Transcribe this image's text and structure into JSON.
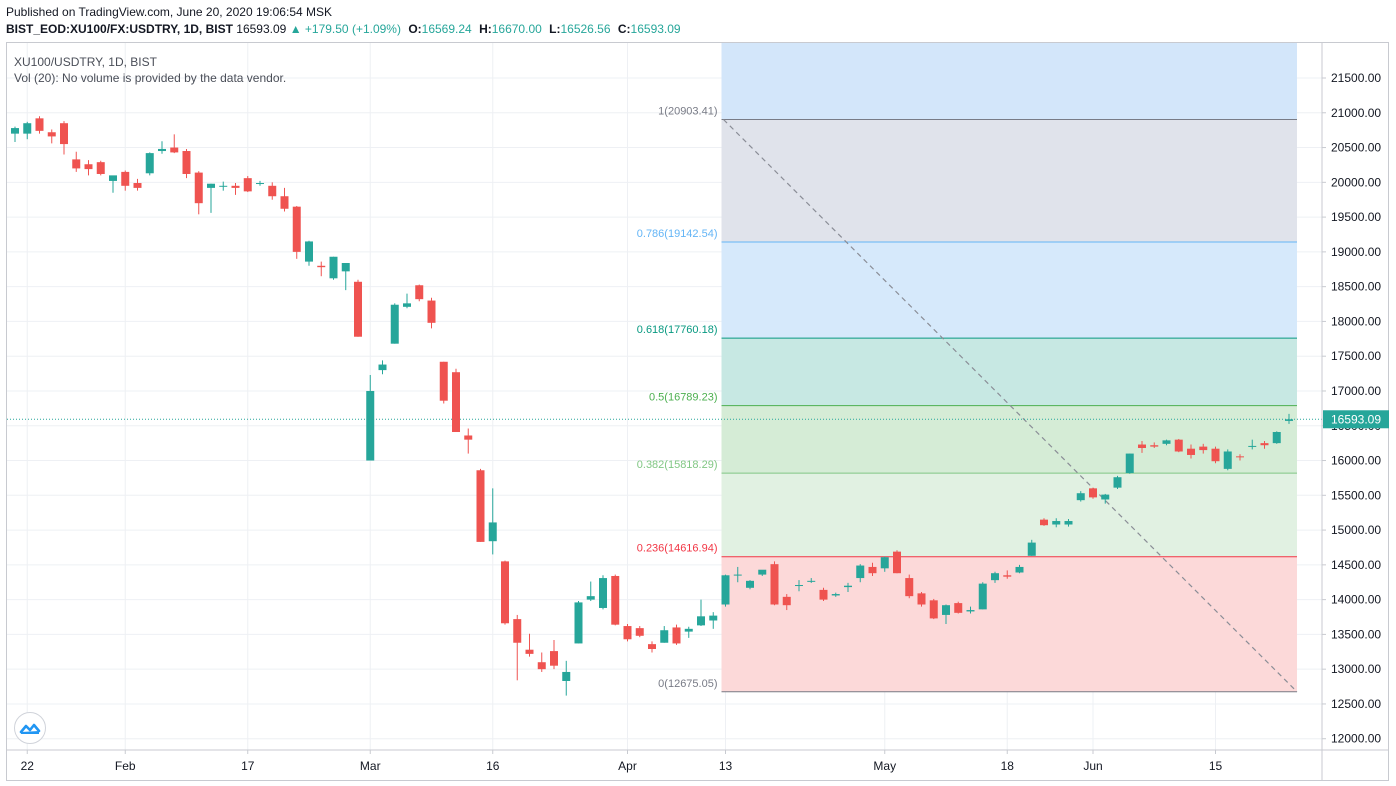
{
  "header": {
    "published": "Published on TradingView.com, June 20, 2020 19:06:54 MSK",
    "symbol": "BIST_EOD:XU100/FX:USDTRY, 1D, BIST",
    "last": "16593.09",
    "change": "▲ +179.50 (+1.09%)",
    "o_label": "O:",
    "o_value": "16569.24",
    "h_label": "H:",
    "h_value": "16670.00",
    "l_label": "L:",
    "l_value": "16526.56",
    "c_label": "C:",
    "c_value": "16593.09"
  },
  "legend": {
    "title": "XU100/USDTRY, 1D, BIST",
    "volume": "Vol (20): No volume is provided by the data vendor."
  },
  "colors": {
    "up": "#26a69a",
    "down": "#ef5350",
    "grid": "#eef0f4",
    "axis_text": "#131722",
    "price_line": "#26a69a"
  },
  "chart_data": {
    "type": "candlestick",
    "y_axis": {
      "ylim": [
        11900,
        22000
      ],
      "ticks": [
        12000,
        12500,
        13000,
        13500,
        14000,
        14500,
        15000,
        15500,
        16000,
        16500,
        17000,
        17500,
        18000,
        18500,
        19000,
        19500,
        20000,
        20500,
        21000,
        21500
      ],
      "tick_labels": [
        "12000.00",
        "12500.00",
        "13000.00",
        "13500.00",
        "14000.00",
        "14500.00",
        "15000.00",
        "15500.00",
        "16000.00",
        "16500.00",
        "17000.00",
        "17500.00",
        "18000.00",
        "18500.00",
        "19000.00",
        "19500.00",
        "20000.00",
        "20500.00",
        "21000.00",
        "21500.00"
      ]
    },
    "x_axis": {
      "ticks": [
        {
          "label": "22",
          "index": 1
        },
        {
          "label": "Feb",
          "index": 9
        },
        {
          "label": "17",
          "index": 19
        },
        {
          "label": "Mar",
          "index": 29
        },
        {
          "label": "16",
          "index": 39
        },
        {
          "label": "Apr",
          "index": 50
        },
        {
          "label": "13",
          "index": 58
        },
        {
          "label": "May",
          "index": 71
        },
        {
          "label": "18",
          "index": 81
        },
        {
          "label": "Jun",
          "index": 88
        },
        {
          "label": "15",
          "index": 98
        }
      ]
    },
    "last_price": 16593.09,
    "last_price_label": "16593.09",
    "candles": [
      {
        "o": 20700,
        "h": 20800,
        "l": 20580,
        "c": 20780
      },
      {
        "o": 20700,
        "h": 20870,
        "l": 20620,
        "c": 20850
      },
      {
        "o": 20920,
        "h": 20950,
        "l": 20700,
        "c": 20740
      },
      {
        "o": 20720,
        "h": 20760,
        "l": 20560,
        "c": 20660
      },
      {
        "o": 20850,
        "h": 20880,
        "l": 20400,
        "c": 20550
      },
      {
        "o": 20330,
        "h": 20440,
        "l": 20150,
        "c": 20200
      },
      {
        "o": 20260,
        "h": 20320,
        "l": 20100,
        "c": 20190
      },
      {
        "o": 20290,
        "h": 20310,
        "l": 20100,
        "c": 20120
      },
      {
        "o": 20020,
        "h": 20060,
        "l": 19850,
        "c": 20100
      },
      {
        "o": 20150,
        "h": 20170,
        "l": 19880,
        "c": 19950
      },
      {
        "o": 19990,
        "h": 20050,
        "l": 19880,
        "c": 19920
      },
      {
        "o": 20130,
        "h": 20430,
        "l": 20100,
        "c": 20420
      },
      {
        "o": 20450,
        "h": 20590,
        "l": 20410,
        "c": 20480
      },
      {
        "o": 20500,
        "h": 20690,
        "l": 20420,
        "c": 20430
      },
      {
        "o": 20450,
        "h": 20480,
        "l": 20060,
        "c": 20120
      },
      {
        "o": 20140,
        "h": 20160,
        "l": 19540,
        "c": 19700
      },
      {
        "o": 19920,
        "h": 19980,
        "l": 19560,
        "c": 19980
      },
      {
        "o": 19950,
        "h": 20010,
        "l": 19880,
        "c": 19950
      },
      {
        "o": 19950,
        "h": 19990,
        "l": 19820,
        "c": 19920
      },
      {
        "o": 20060,
        "h": 20090,
        "l": 19860,
        "c": 19870
      },
      {
        "o": 19980,
        "h": 20020,
        "l": 19950,
        "c": 19990
      },
      {
        "o": 19950,
        "h": 20000,
        "l": 19750,
        "c": 19800
      },
      {
        "o": 19800,
        "h": 19920,
        "l": 19580,
        "c": 19620
      },
      {
        "o": 19650,
        "h": 19660,
        "l": 18900,
        "c": 19000
      },
      {
        "o": 18860,
        "h": 19160,
        "l": 18800,
        "c": 19150
      },
      {
        "o": 18800,
        "h": 18860,
        "l": 18650,
        "c": 18780
      },
      {
        "o": 18620,
        "h": 18930,
        "l": 18600,
        "c": 18930
      },
      {
        "o": 18720,
        "h": 18800,
        "l": 18450,
        "c": 18840
      },
      {
        "o": 18570,
        "h": 18600,
        "l": 17780,
        "c": 17780
      },
      {
        "o": 16000,
        "h": 17230,
        "l": 16000,
        "c": 17000
      },
      {
        "o": 17300,
        "h": 17440,
        "l": 17240,
        "c": 17380
      },
      {
        "o": 17680,
        "h": 18260,
        "l": 17680,
        "c": 18240
      },
      {
        "o": 18210,
        "h": 18400,
        "l": 18190,
        "c": 18260
      },
      {
        "o": 18520,
        "h": 18530,
        "l": 18290,
        "c": 18320
      },
      {
        "o": 18300,
        "h": 18340,
        "l": 17900,
        "c": 17980
      },
      {
        "o": 17420,
        "h": 17420,
        "l": 16820,
        "c": 16860
      },
      {
        "o": 17270,
        "h": 17320,
        "l": 16410,
        "c": 16410
      },
      {
        "o": 16360,
        "h": 16460,
        "l": 16100,
        "c": 16300
      },
      {
        "o": 15860,
        "h": 15880,
        "l": 14830,
        "c": 14830
      },
      {
        "o": 14840,
        "h": 15600,
        "l": 14650,
        "c": 15110
      },
      {
        "o": 14550,
        "h": 14560,
        "l": 13640,
        "c": 13660
      },
      {
        "o": 13720,
        "h": 13780,
        "l": 12840,
        "c": 13380
      },
      {
        "o": 13280,
        "h": 13510,
        "l": 13180,
        "c": 13220
      },
      {
        "o": 13100,
        "h": 13240,
        "l": 12960,
        "c": 13000
      },
      {
        "o": 13260,
        "h": 13420,
        "l": 13000,
        "c": 13050
      },
      {
        "o": 12830,
        "h": 13120,
        "l": 12620,
        "c": 12960
      },
      {
        "o": 13370,
        "h": 13980,
        "l": 13370,
        "c": 13960
      },
      {
        "o": 14000,
        "h": 14260,
        "l": 13980,
        "c": 14050
      },
      {
        "o": 13880,
        "h": 14350,
        "l": 13860,
        "c": 14310
      },
      {
        "o": 14340,
        "h": 14360,
        "l": 13630,
        "c": 13640
      },
      {
        "o": 13620,
        "h": 13650,
        "l": 13400,
        "c": 13430
      },
      {
        "o": 13590,
        "h": 13620,
        "l": 13460,
        "c": 13480
      },
      {
        "o": 13360,
        "h": 13400,
        "l": 13240,
        "c": 13290
      },
      {
        "o": 13380,
        "h": 13620,
        "l": 13380,
        "c": 13560
      },
      {
        "o": 13600,
        "h": 13640,
        "l": 13350,
        "c": 13370
      },
      {
        "o": 13540,
        "h": 13610,
        "l": 13450,
        "c": 13580
      },
      {
        "o": 13630,
        "h": 14000,
        "l": 13620,
        "c": 13760
      },
      {
        "o": 13700,
        "h": 13820,
        "l": 13580,
        "c": 13770
      },
      {
        "o": 13930,
        "h": 14360,
        "l": 13900,
        "c": 14350
      },
      {
        "o": 14350,
        "h": 14470,
        "l": 14250,
        "c": 14360
      },
      {
        "o": 14170,
        "h": 14280,
        "l": 14150,
        "c": 14270
      },
      {
        "o": 14360,
        "h": 14420,
        "l": 14340,
        "c": 14430
      },
      {
        "o": 14510,
        "h": 14550,
        "l": 13920,
        "c": 13930
      },
      {
        "o": 14040,
        "h": 14080,
        "l": 13850,
        "c": 13920
      },
      {
        "o": 14200,
        "h": 14280,
        "l": 14120,
        "c": 14210
      },
      {
        "o": 14270,
        "h": 14310,
        "l": 14240,
        "c": 14270
      },
      {
        "o": 14140,
        "h": 14170,
        "l": 13980,
        "c": 14000
      },
      {
        "o": 14060,
        "h": 14100,
        "l": 14040,
        "c": 14080
      },
      {
        "o": 14180,
        "h": 14240,
        "l": 14110,
        "c": 14200
      },
      {
        "o": 14310,
        "h": 14510,
        "l": 14250,
        "c": 14490
      },
      {
        "o": 14470,
        "h": 14530,
        "l": 14340,
        "c": 14380
      },
      {
        "o": 14450,
        "h": 14620,
        "l": 14400,
        "c": 14610
      },
      {
        "o": 14690,
        "h": 14710,
        "l": 14380,
        "c": 14380
      },
      {
        "o": 14310,
        "h": 14360,
        "l": 14020,
        "c": 14050
      },
      {
        "o": 14090,
        "h": 14110,
        "l": 13900,
        "c": 13930
      },
      {
        "o": 13990,
        "h": 14010,
        "l": 13720,
        "c": 13730
      },
      {
        "o": 13780,
        "h": 13930,
        "l": 13650,
        "c": 13920
      },
      {
        "o": 13950,
        "h": 13970,
        "l": 13800,
        "c": 13810
      },
      {
        "o": 13830,
        "h": 13900,
        "l": 13800,
        "c": 13850
      },
      {
        "o": 13860,
        "h": 14250,
        "l": 13860,
        "c": 14230
      },
      {
        "o": 14280,
        "h": 14400,
        "l": 14240,
        "c": 14380
      },
      {
        "o": 14350,
        "h": 14420,
        "l": 14300,
        "c": 14330
      },
      {
        "o": 14390,
        "h": 14500,
        "l": 14380,
        "c": 14470
      },
      {
        "o": 14630,
        "h": 14860,
        "l": 14630,
        "c": 14820
      },
      {
        "o": 15150,
        "h": 15170,
        "l": 15060,
        "c": 15070
      },
      {
        "o": 15080,
        "h": 15170,
        "l": 15040,
        "c": 15130
      },
      {
        "o": 15080,
        "h": 15160,
        "l": 15050,
        "c": 15130
      },
      {
        "o": 15430,
        "h": 15560,
        "l": 15410,
        "c": 15530
      },
      {
        "o": 15600,
        "h": 15610,
        "l": 15450,
        "c": 15470
      },
      {
        "o": 15440,
        "h": 15520,
        "l": 15380,
        "c": 15510
      },
      {
        "o": 15610,
        "h": 15780,
        "l": 15590,
        "c": 15760
      },
      {
        "o": 15820,
        "h": 16100,
        "l": 15810,
        "c": 16100
      },
      {
        "o": 16230,
        "h": 16280,
        "l": 16110,
        "c": 16180
      },
      {
        "o": 16220,
        "h": 16260,
        "l": 16180,
        "c": 16200
      },
      {
        "o": 16240,
        "h": 16300,
        "l": 16220,
        "c": 16290
      },
      {
        "o": 16300,
        "h": 16310,
        "l": 16120,
        "c": 16130
      },
      {
        "o": 16170,
        "h": 16230,
        "l": 16030,
        "c": 16080
      },
      {
        "o": 16200,
        "h": 16240,
        "l": 16100,
        "c": 16150
      },
      {
        "o": 16170,
        "h": 16200,
        "l": 15960,
        "c": 15990
      },
      {
        "o": 15880,
        "h": 16160,
        "l": 15860,
        "c": 16130
      },
      {
        "o": 16060,
        "h": 16090,
        "l": 16000,
        "c": 16050
      },
      {
        "o": 16200,
        "h": 16300,
        "l": 16160,
        "c": 16210
      },
      {
        "o": 16250,
        "h": 16280,
        "l": 16170,
        "c": 16220
      },
      {
        "o": 16250,
        "h": 16420,
        "l": 16240,
        "c": 16410
      },
      {
        "o": 16569.24,
        "h": 16670,
        "l": 16526.56,
        "c": 16593.09
      }
    ],
    "fibonacci": {
      "start_index": 58,
      "end_index": 104,
      "levels": [
        {
          "ratio": 1,
          "price": 20903.41,
          "label": "1(20903.41)",
          "color": "#787b86",
          "fill": "#e0e3eb"
        },
        {
          "ratio": 0.786,
          "price": 19142.54,
          "label": "0.786(19142.54)",
          "color": "#64b5f6",
          "fill": "#d6e9fb"
        },
        {
          "ratio": 0.618,
          "price": 17760.18,
          "label": "0.618(17760.18)",
          "color": "#089981",
          "fill": "#c7e8e3"
        },
        {
          "ratio": 0.5,
          "price": 16789.23,
          "label": "0.5(16789.23)",
          "color": "#4caf50",
          "fill": "#d5ecd6"
        },
        {
          "ratio": 0.382,
          "price": 15818.29,
          "label": "0.382(15818.29)",
          "color": "#81c784",
          "fill": "#e1f1e2"
        },
        {
          "ratio": 0.236,
          "price": 14616.94,
          "label": "0.236(14616.94)",
          "color": "#f23645",
          "fill": "#fcd9d9"
        },
        {
          "ratio": 0,
          "price": 12675.05,
          "label": "0(12675.05)",
          "color": "#787b86",
          "fill": null
        }
      ],
      "top_fill": "#d3e6fa"
    }
  }
}
